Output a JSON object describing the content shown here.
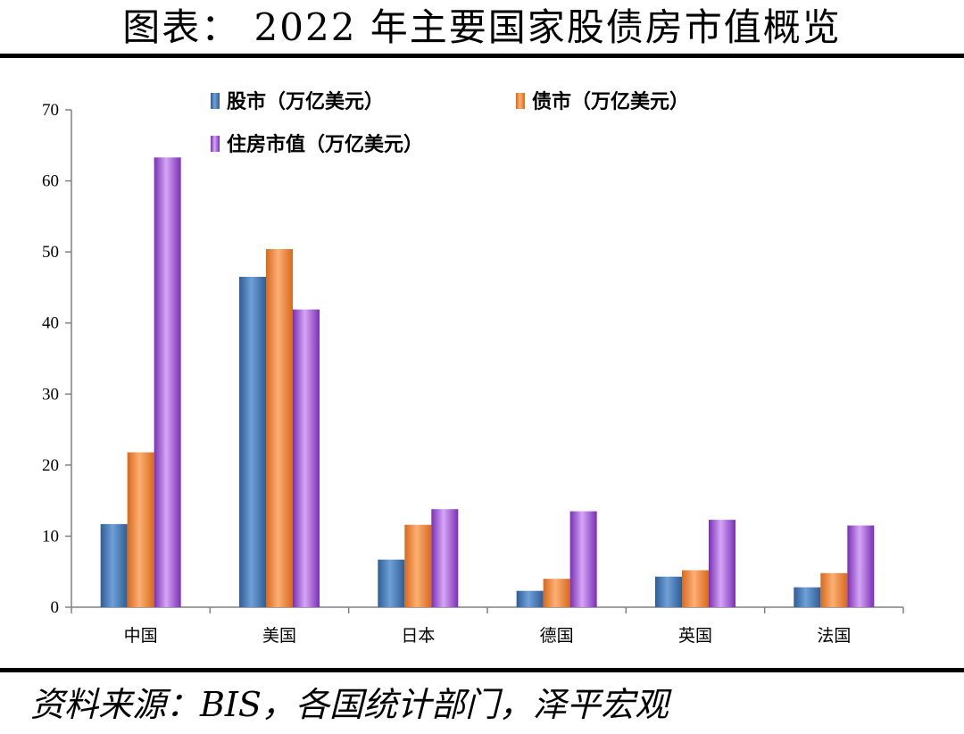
{
  "header": {
    "title": "图表： 2022 年主要国家股债房市值概览"
  },
  "footer": {
    "source": "资料来源：BIS，各国统计部门，泽平宏观"
  },
  "chart_data": {
    "type": "bar",
    "categories": [
      "中国",
      "美国",
      "日本",
      "德国",
      "英国",
      "法国"
    ],
    "series": [
      {
        "name": "股市（万亿美元）",
        "values": [
          11.7,
          46.5,
          6.7,
          2.3,
          4.3,
          2.8
        ],
        "color": "#4f81bd"
      },
      {
        "name": "债市（万亿美元）",
        "values": [
          21.8,
          50.4,
          11.6,
          4.0,
          5.2,
          4.8
        ],
        "color": "#f79646"
      },
      {
        "name": "住房市值（万亿美元）",
        "values": [
          63.3,
          41.9,
          13.8,
          13.5,
          12.3,
          11.5
        ],
        "color": "#9b59d0"
      }
    ],
    "yticks": [
      "0",
      "10",
      "20",
      "30",
      "40",
      "50",
      "60",
      "70"
    ],
    "ylim": [
      0,
      70
    ],
    "xlabel": "",
    "ylabel": "",
    "legend_position": "top-left",
    "grid": false
  }
}
